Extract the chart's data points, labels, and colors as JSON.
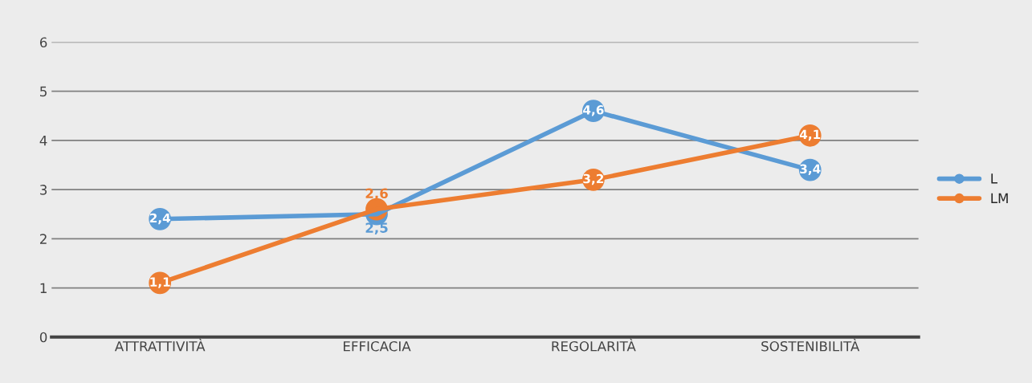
{
  "chart_data": {
    "type": "line",
    "categories": [
      "ATTRATTIVITÀ",
      "EFFICACIA",
      "REGOLARITÀ",
      "SOSTENIBILITÀ"
    ],
    "series": [
      {
        "name": "L",
        "color": "#5b9bd5",
        "values": [
          2.4,
          2.5,
          4.6,
          3.4
        ],
        "value_labels": [
          "2,4",
          "2,5",
          "4,6",
          "3,4"
        ]
      },
      {
        "name": "LM",
        "color": "#ed7d31",
        "values": [
          1.1,
          2.6,
          3.2,
          4.1
        ],
        "value_labels": [
          "1,1",
          "2,6",
          "3,2",
          "4,1"
        ]
      }
    ],
    "ylim": [
      0,
      6
    ],
    "yticks": [
      0,
      1,
      2,
      3,
      4,
      5,
      6
    ],
    "grid": "y",
    "legend": "right",
    "marker": "circle"
  }
}
